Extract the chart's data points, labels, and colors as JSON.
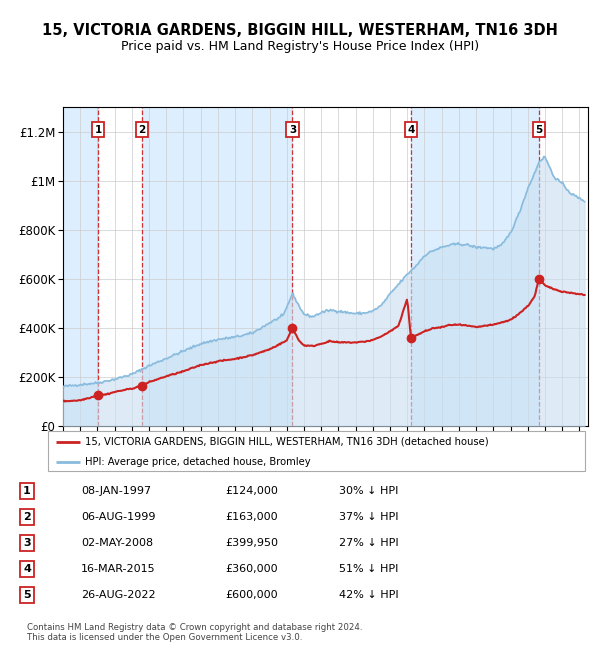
{
  "title": "15, VICTORIA GARDENS, BIGGIN HILL, WESTERHAM, TN16 3DH",
  "subtitle": "Price paid vs. HM Land Registry's House Price Index (HPI)",
  "footer": "Contains HM Land Registry data © Crown copyright and database right 2024.\nThis data is licensed under the Open Government Licence v3.0.",
  "xlim_start": 1995.0,
  "xlim_end": 2025.5,
  "ylim": [
    0,
    1300000
  ],
  "yticks": [
    0,
    200000,
    400000,
    600000,
    800000,
    1000000,
    1200000
  ],
  "ytick_labels": [
    "£0",
    "£200K",
    "£400K",
    "£600K",
    "£800K",
    "£1M",
    "£1.2M"
  ],
  "sale_dates_decimal": [
    1997.03,
    1999.59,
    2008.33,
    2015.21,
    2022.65
  ],
  "sale_prices": [
    124000,
    163000,
    399950,
    360000,
    600000
  ],
  "sale_labels": [
    "1",
    "2",
    "3",
    "4",
    "5"
  ],
  "hpi_line_color": "#88bbdd",
  "hpi_fill_color": "#c8dff0",
  "sale_color": "#cc2222",
  "vline_color": "#cc3333",
  "shade_color": "#ddeeff",
  "legend_sale_label": "15, VICTORIA GARDENS, BIGGIN HILL, WESTERHAM, TN16 3DH (detached house)",
  "legend_hpi_label": "HPI: Average price, detached house, Bromley",
  "table_rows": [
    [
      "1",
      "08-JAN-1997",
      "£124,000",
      "30% ↓ HPI"
    ],
    [
      "2",
      "06-AUG-1999",
      "£163,000",
      "37% ↓ HPI"
    ],
    [
      "3",
      "02-MAY-2008",
      "£399,950",
      "27% ↓ HPI"
    ],
    [
      "4",
      "16-MAR-2015",
      "£360,000",
      "51% ↓ HPI"
    ],
    [
      "5",
      "26-AUG-2022",
      "£600,000",
      "42% ↓ HPI"
    ]
  ]
}
